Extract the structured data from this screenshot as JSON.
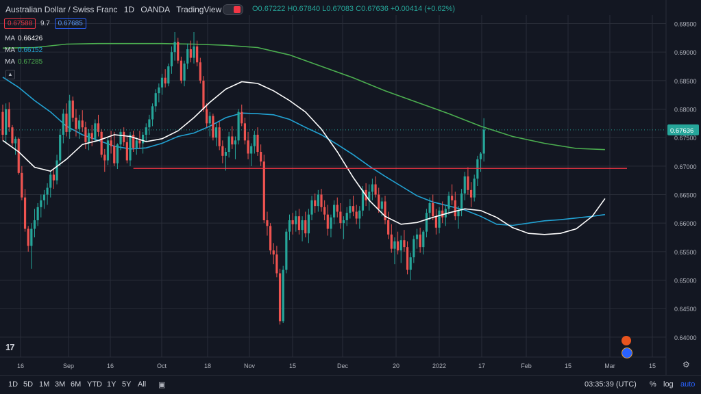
{
  "header": {
    "symbol_name": "Australian Dollar / Swiss Franc",
    "interval": "1D",
    "exchange": "OANDA",
    "source": "TradingView",
    "ohlc": {
      "o": "O0.67222",
      "h": "H0.67840",
      "l": "L0.67083",
      "c": "C0.67636",
      "chg": "+0.00414 (+0.62%)"
    }
  },
  "quote": {
    "bid": "0.67588",
    "spread": "9.7",
    "ask": "0.67685"
  },
  "indicators": [
    {
      "label": "MA",
      "value": "0.66426",
      "color": "#ffffff"
    },
    {
      "label": "MA",
      "value": "0.66152",
      "color": "#22a3d4"
    },
    {
      "label": "MA",
      "value": "0.67285",
      "color": "#4caf50"
    }
  ],
  "collapse_icon": "chevron-up-icon",
  "price_label": "0.67636",
  "colors": {
    "up": "#26a69a",
    "down": "#ef5350",
    "bg": "#131722",
    "grid": "#2a2e39",
    "hline": "#f23645",
    "last": "#26a69a"
  },
  "bottom": {
    "ranges": [
      "1D",
      "5D",
      "1M",
      "3M",
      "6M",
      "YTD",
      "1Y",
      "5Y",
      "All"
    ],
    "time": "03:35:39 (UTC)",
    "pct": "%",
    "log": "log",
    "auto": "auto"
  },
  "chart_data": {
    "type": "candlestick",
    "ylim": [
      0.6365,
      0.6965
    ],
    "y_ticks": [
      "0.69500",
      "0.69000",
      "0.68500",
      "0.68000",
      "0.67500",
      "0.67000",
      "0.66500",
      "0.66000",
      "0.65500",
      "0.65000",
      "0.64500",
      "0.64000"
    ],
    "x_ticks": [
      "16",
      "Sep",
      "16",
      "Oct",
      "18",
      "Nov",
      "15",
      "Dec",
      "20",
      "2022",
      "17",
      "Feb",
      "15",
      "Mar",
      "15"
    ],
    "horizontal_line": 0.6696,
    "ma_white": [
      [
        0,
        0.6745
      ],
      [
        5,
        0.6725
      ],
      [
        10,
        0.6698
      ],
      [
        15,
        0.6691
      ],
      [
        20,
        0.6712
      ],
      [
        25,
        0.6738
      ],
      [
        30,
        0.6745
      ],
      [
        35,
        0.6755
      ],
      [
        40,
        0.6752
      ],
      [
        45,
        0.6743
      ],
      [
        50,
        0.6748
      ],
      [
        55,
        0.6762
      ],
      [
        60,
        0.6785
      ],
      [
        65,
        0.6812
      ],
      [
        70,
        0.6835
      ],
      [
        75,
        0.6848
      ],
      [
        80,
        0.6845
      ],
      [
        85,
        0.6832
      ],
      [
        90,
        0.6815
      ],
      [
        95,
        0.6795
      ],
      [
        100,
        0.6765
      ],
      [
        105,
        0.6725
      ],
      [
        110,
        0.668
      ],
      [
        115,
        0.664
      ],
      [
        120,
        0.6612
      ],
      [
        125,
        0.6598
      ],
      [
        130,
        0.6601
      ],
      [
        135,
        0.661
      ],
      [
        140,
        0.6618
      ],
      [
        145,
        0.6625
      ],
      [
        150,
        0.6622
      ],
      [
        155,
        0.661
      ],
      [
        160,
        0.6592
      ],
      [
        165,
        0.6582
      ],
      [
        170,
        0.658
      ],
      [
        175,
        0.6582
      ],
      [
        180,
        0.659
      ],
      [
        185,
        0.6612
      ],
      [
        189,
        0.6643
      ]
    ],
    "ma_blue": [
      [
        0,
        0.6856
      ],
      [
        5,
        0.6838
      ],
      [
        10,
        0.6815
      ],
      [
        15,
        0.6795
      ],
      [
        20,
        0.677
      ],
      [
        25,
        0.6755
      ],
      [
        30,
        0.6745
      ],
      [
        35,
        0.6735
      ],
      [
        40,
        0.673
      ],
      [
        45,
        0.6732
      ],
      [
        50,
        0.674
      ],
      [
        55,
        0.6752
      ],
      [
        60,
        0.6758
      ],
      [
        65,
        0.677
      ],
      [
        70,
        0.6785
      ],
      [
        75,
        0.6793
      ],
      [
        80,
        0.6792
      ],
      [
        85,
        0.679
      ],
      [
        90,
        0.6782
      ],
      [
        95,
        0.6768
      ],
      [
        100,
        0.6755
      ],
      [
        105,
        0.6738
      ],
      [
        110,
        0.672
      ],
      [
        115,
        0.67
      ],
      [
        120,
        0.6682
      ],
      [
        125,
        0.6665
      ],
      [
        130,
        0.6648
      ],
      [
        135,
        0.6637
      ],
      [
        140,
        0.663
      ],
      [
        145,
        0.6623
      ],
      [
        150,
        0.6612
      ],
      [
        155,
        0.6598
      ],
      [
        160,
        0.6596
      ],
      [
        165,
        0.66
      ],
      [
        170,
        0.6604
      ],
      [
        175,
        0.6606
      ],
      [
        180,
        0.6609
      ],
      [
        185,
        0.6612
      ],
      [
        189,
        0.6615
      ]
    ],
    "ma_green": [
      [
        0,
        0.6907
      ],
      [
        10,
        0.6908
      ],
      [
        20,
        0.6914
      ],
      [
        30,
        0.6915
      ],
      [
        40,
        0.6915
      ],
      [
        50,
        0.6915
      ],
      [
        60,
        0.6914
      ],
      [
        70,
        0.6912
      ],
      [
        80,
        0.6908
      ],
      [
        90,
        0.6895
      ],
      [
        100,
        0.6875
      ],
      [
        110,
        0.6855
      ],
      [
        120,
        0.6832
      ],
      [
        130,
        0.6812
      ],
      [
        140,
        0.6792
      ],
      [
        150,
        0.677
      ],
      [
        160,
        0.6752
      ],
      [
        170,
        0.674
      ],
      [
        180,
        0.6731
      ],
      [
        189,
        0.6729
      ]
    ],
    "candles": [
      [
        0.6795,
        0.6808,
        0.6745,
        0.6755
      ],
      [
        0.6755,
        0.681,
        0.6742,
        0.68
      ],
      [
        0.68,
        0.6812,
        0.676,
        0.6768
      ],
      [
        0.6768,
        0.6772,
        0.6735,
        0.674
      ],
      [
        0.674,
        0.6752,
        0.672,
        0.6748
      ],
      [
        0.6748,
        0.675,
        0.6685,
        0.6688
      ],
      [
        0.6688,
        0.67,
        0.664,
        0.6645
      ],
      [
        0.6645,
        0.666,
        0.6585,
        0.659
      ],
      [
        0.659,
        0.6595,
        0.655,
        0.656
      ],
      [
        0.656,
        0.66,
        0.652,
        0.659
      ],
      [
        0.659,
        0.6625,
        0.6575,
        0.6605
      ],
      [
        0.6605,
        0.6635,
        0.6595,
        0.6628
      ],
      [
        0.6628,
        0.665,
        0.661,
        0.664
      ],
      [
        0.664,
        0.6658,
        0.6625,
        0.665
      ],
      [
        0.665,
        0.667,
        0.6632,
        0.6662
      ],
      [
        0.6662,
        0.669,
        0.6645,
        0.6685
      ],
      [
        0.6685,
        0.6695,
        0.666,
        0.6675
      ],
      [
        0.6675,
        0.672,
        0.6668,
        0.671
      ],
      [
        0.671,
        0.6765,
        0.67,
        0.6755
      ],
      [
        0.6755,
        0.68,
        0.674,
        0.6792
      ],
      [
        0.6792,
        0.681,
        0.6752,
        0.676
      ],
      [
        0.676,
        0.6825,
        0.6748,
        0.6815
      ],
      [
        0.6815,
        0.6822,
        0.6778,
        0.6785
      ],
      [
        0.6785,
        0.68,
        0.6752,
        0.6765
      ],
      [
        0.6765,
        0.679,
        0.6748,
        0.678
      ],
      [
        0.678,
        0.6798,
        0.676,
        0.6768
      ],
      [
        0.6768,
        0.6778,
        0.673,
        0.6742
      ],
      [
        0.6742,
        0.6765,
        0.6728,
        0.6758
      ],
      [
        0.6758,
        0.6772,
        0.6735,
        0.6748
      ],
      [
        0.6748,
        0.6782,
        0.6742,
        0.6775
      ],
      [
        0.6775,
        0.679,
        0.6752,
        0.676
      ],
      [
        0.676,
        0.6765,
        0.6715,
        0.672
      ],
      [
        0.672,
        0.673,
        0.669,
        0.671
      ],
      [
        0.671,
        0.675,
        0.6702,
        0.6745
      ],
      [
        0.6745,
        0.6762,
        0.6722,
        0.6735
      ],
      [
        0.6735,
        0.676,
        0.67,
        0.6705
      ],
      [
        0.6705,
        0.674,
        0.6695,
        0.6738
      ],
      [
        0.6738,
        0.6765,
        0.6728,
        0.676
      ],
      [
        0.676,
        0.6768,
        0.6735,
        0.6742
      ],
      [
        0.6742,
        0.6752,
        0.6705,
        0.671
      ],
      [
        0.671,
        0.676,
        0.67,
        0.6755
      ],
      [
        0.6755,
        0.6762,
        0.6725,
        0.6732
      ],
      [
        0.6732,
        0.675,
        0.672,
        0.6745
      ],
      [
        0.6745,
        0.6762,
        0.673,
        0.674
      ],
      [
        0.674,
        0.676,
        0.6722,
        0.6755
      ],
      [
        0.6755,
        0.6775,
        0.6742,
        0.6768
      ],
      [
        0.6768,
        0.679,
        0.6755,
        0.6782
      ],
      [
        0.6782,
        0.681,
        0.677,
        0.6805
      ],
      [
        0.6805,
        0.6835,
        0.6795,
        0.6828
      ],
      [
        0.6828,
        0.6845,
        0.6812,
        0.6838
      ],
      [
        0.6838,
        0.6862,
        0.6825,
        0.6855
      ],
      [
        0.6855,
        0.687,
        0.6838,
        0.6845
      ],
      [
        0.6845,
        0.688,
        0.684,
        0.6875
      ],
      [
        0.6875,
        0.691,
        0.6862,
        0.69
      ],
      [
        0.69,
        0.6935,
        0.6885,
        0.6918
      ],
      [
        0.6918,
        0.6925,
        0.688,
        0.6885
      ],
      [
        0.6885,
        0.6892,
        0.6845,
        0.685
      ],
      [
        0.685,
        0.6885,
        0.684,
        0.688
      ],
      [
        0.688,
        0.6915,
        0.687,
        0.6905
      ],
      [
        0.6905,
        0.692,
        0.6882,
        0.689
      ],
      [
        0.689,
        0.6935,
        0.688,
        0.691
      ],
      [
        0.691,
        0.692,
        0.6875,
        0.6882
      ],
      [
        0.6882,
        0.689,
        0.6845,
        0.685
      ],
      [
        0.685,
        0.6858,
        0.6795,
        0.68
      ],
      [
        0.68,
        0.681,
        0.6768,
        0.6775
      ],
      [
        0.6775,
        0.6795,
        0.6752,
        0.6788
      ],
      [
        0.6788,
        0.6792,
        0.6745,
        0.675
      ],
      [
        0.675,
        0.6775,
        0.6735,
        0.6768
      ],
      [
        0.6768,
        0.6778,
        0.6728,
        0.6735
      ],
      [
        0.6735,
        0.6745,
        0.6705,
        0.6718
      ],
      [
        0.6718,
        0.6732,
        0.6692,
        0.6725
      ],
      [
        0.6725,
        0.676,
        0.6715,
        0.6752
      ],
      [
        0.6752,
        0.677,
        0.673,
        0.6738
      ],
      [
        0.6738,
        0.6752,
        0.6712,
        0.6745
      ],
      [
        0.6745,
        0.68,
        0.6738,
        0.6795
      ],
      [
        0.6795,
        0.6808,
        0.677,
        0.6775
      ],
      [
        0.6775,
        0.6785,
        0.6738,
        0.6745
      ],
      [
        0.6745,
        0.676,
        0.6712,
        0.6722
      ],
      [
        0.6722,
        0.674,
        0.67,
        0.6735
      ],
      [
        0.6735,
        0.6762,
        0.6722,
        0.6755
      ],
      [
        0.6755,
        0.6768,
        0.6718,
        0.6725
      ],
      [
        0.6725,
        0.6738,
        0.67,
        0.6708
      ],
      [
        0.6708,
        0.672,
        0.66,
        0.6605
      ],
      [
        0.6605,
        0.662,
        0.6578,
        0.6595
      ],
      [
        0.6595,
        0.66,
        0.6545,
        0.6552
      ],
      [
        0.6552,
        0.6565,
        0.6528,
        0.6545
      ],
      [
        0.6545,
        0.656,
        0.6505,
        0.6512
      ],
      [
        0.6512,
        0.652,
        0.6422,
        0.6428
      ],
      [
        0.6428,
        0.6525,
        0.6425,
        0.6518
      ],
      [
        0.6518,
        0.659,
        0.6512,
        0.6585
      ],
      [
        0.6585,
        0.6615,
        0.657,
        0.6605
      ],
      [
        0.6605,
        0.6618,
        0.658,
        0.6598
      ],
      [
        0.6598,
        0.6622,
        0.6585,
        0.6612
      ],
      [
        0.6612,
        0.6625,
        0.658,
        0.6588
      ],
      [
        0.6588,
        0.6612,
        0.6568,
        0.6605
      ],
      [
        0.6605,
        0.662,
        0.6575,
        0.6582
      ],
      [
        0.6582,
        0.6625,
        0.6565,
        0.6615
      ],
      [
        0.6615,
        0.6648,
        0.6605,
        0.664
      ],
      [
        0.664,
        0.6652,
        0.6618,
        0.663
      ],
      [
        0.663,
        0.6658,
        0.662,
        0.665
      ],
      [
        0.665,
        0.666,
        0.662,
        0.6628
      ],
      [
        0.6628,
        0.664,
        0.6605,
        0.6615
      ],
      [
        0.6615,
        0.6632,
        0.6578,
        0.659
      ],
      [
        0.659,
        0.6615,
        0.6575,
        0.661
      ],
      [
        0.661,
        0.664,
        0.6598,
        0.6632
      ],
      [
        0.6632,
        0.6645,
        0.661,
        0.662
      ],
      [
        0.662,
        0.6635,
        0.659,
        0.66
      ],
      [
        0.66,
        0.6612,
        0.6572,
        0.6605
      ],
      [
        0.6605,
        0.6628,
        0.6595,
        0.6618
      ],
      [
        0.6618,
        0.6642,
        0.6608,
        0.663
      ],
      [
        0.663,
        0.6648,
        0.6612,
        0.662
      ],
      [
        0.662,
        0.6632,
        0.6598,
        0.6608
      ],
      [
        0.6608,
        0.663,
        0.659,
        0.6622
      ],
      [
        0.6622,
        0.6665,
        0.6612,
        0.6658
      ],
      [
        0.6658,
        0.667,
        0.663,
        0.664
      ],
      [
        0.664,
        0.6668,
        0.6622,
        0.6655
      ],
      [
        0.6655,
        0.6678,
        0.664,
        0.6668
      ],
      [
        0.6668,
        0.6682,
        0.6645,
        0.665
      ],
      [
        0.665,
        0.6662,
        0.6618,
        0.6625
      ],
      [
        0.6625,
        0.6645,
        0.6612,
        0.6638
      ],
      [
        0.6638,
        0.6648,
        0.6598,
        0.6605
      ],
      [
        0.6605,
        0.662,
        0.6572,
        0.658
      ],
      [
        0.658,
        0.6598,
        0.6548,
        0.6555
      ],
      [
        0.6555,
        0.6575,
        0.6528,
        0.6568
      ],
      [
        0.6568,
        0.6585,
        0.6545,
        0.6552
      ],
      [
        0.6552,
        0.6578,
        0.653,
        0.657
      ],
      [
        0.657,
        0.6588,
        0.655,
        0.6558
      ],
      [
        0.6558,
        0.6568,
        0.651,
        0.6518
      ],
      [
        0.6518,
        0.6548,
        0.65,
        0.654
      ],
      [
        0.654,
        0.6578,
        0.653,
        0.6572
      ],
      [
        0.6572,
        0.659,
        0.6555,
        0.658
      ],
      [
        0.658,
        0.6592,
        0.6548,
        0.6558
      ],
      [
        0.6558,
        0.6588,
        0.6545,
        0.6585
      ],
      [
        0.6585,
        0.6625,
        0.6575,
        0.6618
      ],
      [
        0.6618,
        0.6645,
        0.6605,
        0.6635
      ],
      [
        0.6635,
        0.665,
        0.6605,
        0.6612
      ],
      [
        0.6612,
        0.6625,
        0.658,
        0.6592
      ],
      [
        0.6592,
        0.6628,
        0.6582,
        0.6622
      ],
      [
        0.6622,
        0.6638,
        0.66,
        0.661
      ],
      [
        0.661,
        0.6632,
        0.6595,
        0.6625
      ],
      [
        0.6625,
        0.6655,
        0.6615,
        0.6648
      ],
      [
        0.6648,
        0.6668,
        0.6632,
        0.664
      ],
      [
        0.664,
        0.6655,
        0.6605,
        0.6612
      ],
      [
        0.6612,
        0.663,
        0.659,
        0.6622
      ],
      [
        0.6622,
        0.666,
        0.6612,
        0.6652
      ],
      [
        0.6652,
        0.669,
        0.664,
        0.6682
      ],
      [
        0.6682,
        0.6698,
        0.665,
        0.6658
      ],
      [
        0.6658,
        0.6672,
        0.6628,
        0.6645
      ],
      [
        0.6645,
        0.6685,
        0.6638,
        0.6678
      ],
      [
        0.6678,
        0.6718,
        0.6665,
        0.6712
      ],
      [
        0.6712,
        0.6725,
        0.669,
        0.6722
      ],
      [
        0.6722,
        0.6784,
        0.6708,
        0.6764
      ]
    ]
  }
}
